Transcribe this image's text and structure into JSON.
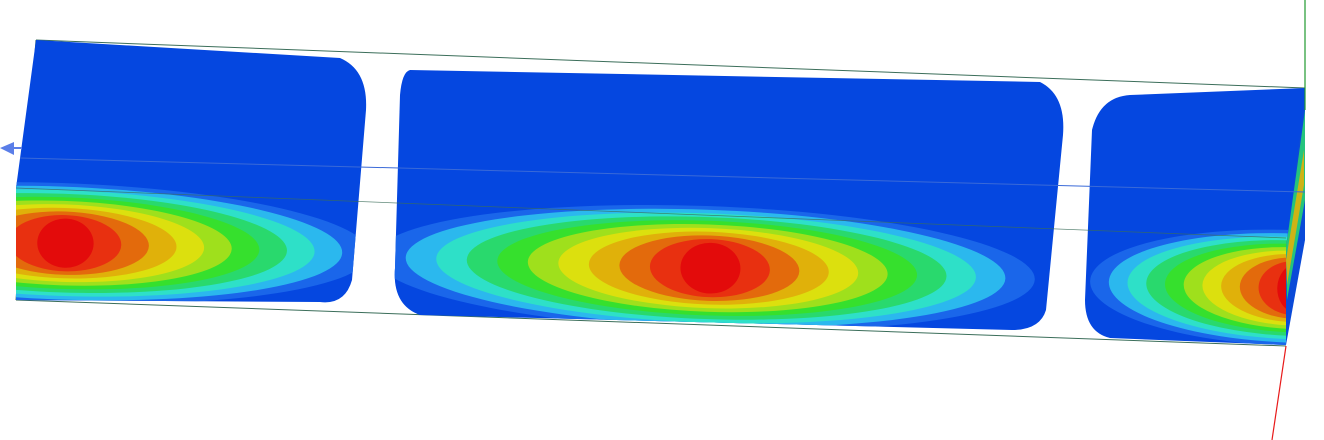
{
  "viewport": {
    "background": "#ffffff",
    "content": "contour-plot-3d"
  },
  "colors": {
    "base_blue": "#0547e0",
    "band_outer": [
      "#1a66ea",
      "#2bb8ee",
      "#2ee0c8",
      "#29d96d",
      "#36e02d",
      "#9fe01c",
      "#dce00e",
      "#e0b10a",
      "#e36a0c",
      "#e83010",
      "#e30b0b"
    ],
    "frame_line": "#3b6e5a",
    "axis_x": "#e81a1a",
    "axis_y": "#1f9a2e",
    "axis_z": "#5a7ee8"
  },
  "icons": {
    "axis_arrow": "triad-arrow-icon"
  }
}
